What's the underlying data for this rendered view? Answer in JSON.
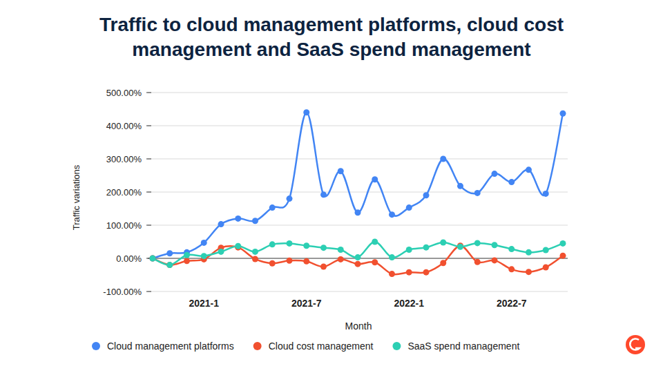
{
  "chart_data": {
    "type": "line",
    "title": "Traffic to cloud management platforms, cloud cost management and SaaS spend management",
    "x_label": "Month",
    "y_label": "Traffic variations",
    "categories": [
      null,
      null,
      null,
      "2021-1",
      null,
      null,
      null,
      null,
      null,
      "2021-7",
      null,
      null,
      null,
      null,
      null,
      "2022-1",
      null,
      null,
      null,
      null,
      null,
      "2022-7",
      null,
      null,
      null
    ],
    "series": [
      {
        "name": "Cloud management platforms",
        "color": "#4285f4",
        "values": [
          0,
          15,
          18,
          47,
          103,
          120,
          113,
          153,
          180,
          440,
          192,
          263,
          138,
          238,
          132,
          153,
          190,
          300,
          218,
          197,
          255,
          230,
          267,
          195,
          437
        ]
      },
      {
        "name": "Cloud cost management",
        "color": "#f1502f",
        "values": [
          0,
          -20,
          -8,
          -3,
          32,
          33,
          -2,
          -15,
          -7,
          -9,
          -25,
          -3,
          -17,
          -12,
          -47,
          -42,
          -42,
          -14,
          38,
          -11,
          -6,
          -33,
          -41,
          -27,
          8
        ]
      },
      {
        "name": "SaaS spend management",
        "color": "#2ccfb3",
        "values": [
          0,
          -20,
          10,
          7,
          20,
          37,
          20,
          42,
          45,
          38,
          32,
          26,
          3,
          50,
          3,
          26,
          33,
          48,
          35,
          46,
          40,
          28,
          18,
          25,
          45
        ]
      }
    ],
    "ylim": [
      -100,
      500
    ],
    "yticks": [
      {
        "value": -100,
        "label": "-100.00%"
      },
      {
        "value": 0,
        "label": "0.00%"
      },
      {
        "value": 100,
        "label": "100.00%"
      },
      {
        "value": 200,
        "label": "200.00%"
      },
      {
        "value": 300,
        "label": "300.00%"
      },
      {
        "value": 400,
        "label": "400.00%"
      },
      {
        "value": 500,
        "label": "500.00%"
      }
    ],
    "grid": true,
    "legend": "bottom",
    "marker": "circle",
    "line_style": "smooth"
  }
}
